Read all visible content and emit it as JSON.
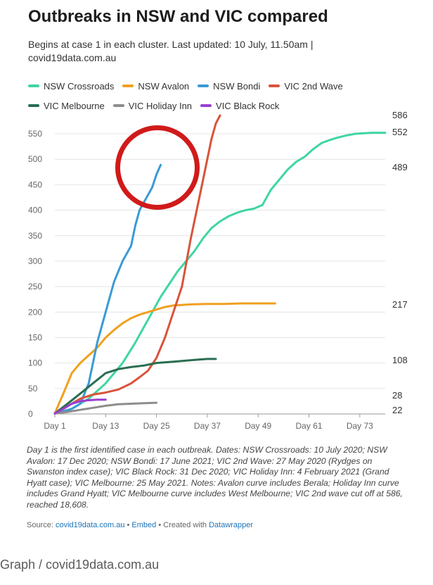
{
  "title": "Outbreaks in NSW and VIC compared",
  "subtitle": "Begins at case 1 in each cluster. Last updated: 10 July, 11.50am | covid19data.com.au",
  "notes": "Day 1 is the first identified case in each outbreak. Dates: NSW Crossroads: 10 July 2020; NSW Avalon: 17 Dec 2020; NSW Bondi: 17 June 2021; VIC 2nd Wave: 27 May 2020 (Rydges on Swanston index case); VIC Black Rock: 31 Dec 2020; VIC Holiday Inn: 4 February 2021 (Grand Hyatt case); VIC Melbourne: 25 May 2021. Notes: Avalon curve includes Berala; Holiday Inn curve includes Grand Hyatt; VIC Melbourne curve includes West Melbourne; VIC 2nd wave cut off at 586, reached 18,608.",
  "source": {
    "label": "Source:",
    "site": "covid19data.com.au",
    "sep1": "•",
    "embed": "Embed",
    "sep2": "•",
    "created": "Created with",
    "tool": "Datawrapper"
  },
  "caption": "Graph / covid19data.com.au",
  "chart_data": {
    "type": "line",
    "title": "Outbreaks in NSW and VIC compared",
    "xlabel": "",
    "ylabel": "",
    "xlim": [
      1,
      79
    ],
    "ylim": [
      0,
      586
    ],
    "x_ticks": [
      1,
      13,
      25,
      37,
      49,
      61,
      73
    ],
    "x_tick_labels": [
      "Day 1",
      "Day 13",
      "Day 25",
      "Day 37",
      "Day 49",
      "Day 61",
      "Day 73"
    ],
    "y_ticks": [
      0,
      50,
      100,
      150,
      200,
      250,
      300,
      350,
      400,
      450,
      500,
      550
    ],
    "y_tick_labels": [
      "0",
      "50",
      "100",
      "150",
      "200",
      "250",
      "300",
      "350",
      "400",
      "450",
      "500",
      "550"
    ],
    "grid": true,
    "legend": "top",
    "end_labels": [
      "586",
      "552",
      "489",
      "217",
      "108",
      "28",
      "22"
    ],
    "series": [
      {
        "name": "NSW Crossroads",
        "color": "#3fd6a0",
        "x": [
          1,
          5,
          9,
          13,
          17,
          20,
          22,
          24,
          26,
          28,
          30,
          32,
          34,
          36,
          38,
          40,
          42,
          44,
          46,
          48,
          50,
          52,
          54,
          56,
          58,
          60,
          62,
          64,
          66,
          68,
          70,
          72,
          74,
          76,
          79
        ],
        "y": [
          1,
          10,
          30,
          60,
          100,
          140,
          170,
          200,
          230,
          255,
          280,
          300,
          320,
          345,
          365,
          378,
          388,
          395,
          400,
          403,
          410,
          440,
          460,
          480,
          495,
          505,
          520,
          532,
          538,
          543,
          547,
          550,
          551,
          552,
          552
        ]
      },
      {
        "name": "NSW Avalon",
        "color": "#f0a020",
        "x": [
          1,
          3,
          5,
          7,
          9,
          11,
          13,
          15,
          17,
          19,
          21,
          23,
          25,
          27,
          29,
          33,
          37,
          41,
          45,
          49,
          53
        ],
        "y": [
          1,
          40,
          80,
          100,
          115,
          130,
          150,
          165,
          178,
          188,
          195,
          200,
          205,
          210,
          213,
          215,
          216,
          216,
          217,
          217,
          217
        ]
      },
      {
        "name": "NSW Bondi",
        "color": "#3a9ad6",
        "x": [
          1,
          3,
          5,
          7,
          9,
          11,
          13,
          15,
          17,
          19,
          20,
          21,
          22,
          23,
          24,
          25,
          26
        ],
        "y": [
          1,
          5,
          10,
          20,
          60,
          140,
          200,
          260,
          300,
          330,
          370,
          400,
          415,
          430,
          445,
          470,
          489
        ]
      },
      {
        "name": "VIC 2nd Wave",
        "color": "#d9533b",
        "x": [
          1,
          4,
          7,
          10,
          13,
          16,
          19,
          21,
          23,
          25,
          27,
          29,
          31,
          33,
          34,
          35,
          36,
          37,
          38,
          39,
          40
        ],
        "y": [
          1,
          15,
          30,
          38,
          42,
          48,
          60,
          72,
          85,
          110,
          150,
          200,
          250,
          340,
          380,
          420,
          460,
          500,
          540,
          570,
          586
        ]
      },
      {
        "name": "VIC Melbourne",
        "color": "#2a6e52",
        "x": [
          1,
          4,
          7,
          10,
          13,
          16,
          19,
          22,
          25,
          28,
          31,
          34,
          37,
          39
        ],
        "y": [
          1,
          20,
          40,
          60,
          80,
          88,
          92,
          95,
          100,
          102,
          104,
          106,
          108,
          108
        ]
      },
      {
        "name": "VIC Holiday Inn",
        "color": "#8d8d8d",
        "x": [
          1,
          4,
          7,
          10,
          13,
          16,
          19,
          22,
          25
        ],
        "y": [
          1,
          4,
          8,
          12,
          16,
          19,
          20,
          21,
          22
        ]
      },
      {
        "name": "VIC Black Rock",
        "color": "#9b3fd0",
        "x": [
          1,
          3,
          5,
          7,
          9,
          11,
          13
        ],
        "y": [
          1,
          10,
          20,
          25,
          27,
          28,
          28
        ]
      }
    ]
  }
}
